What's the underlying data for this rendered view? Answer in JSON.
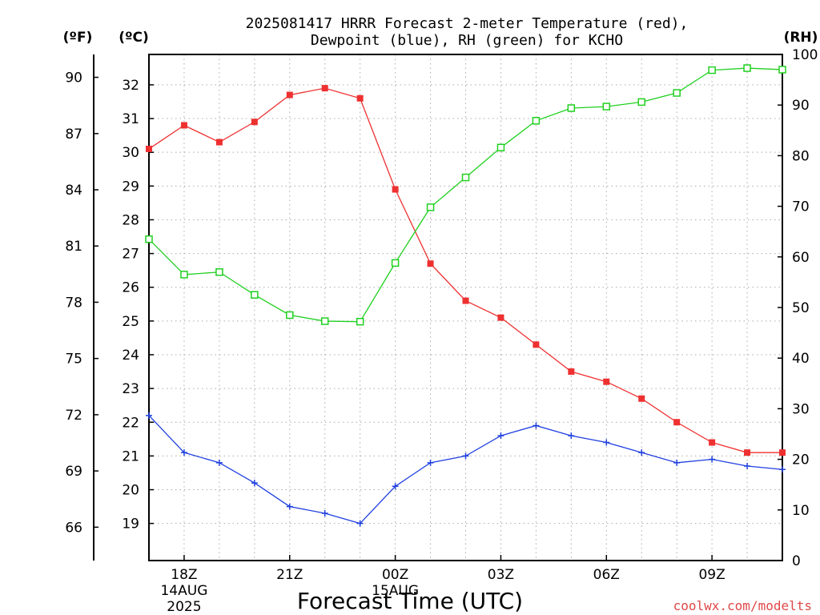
{
  "chart_data": {
    "type": "line",
    "title": "2025081417 HRRR Forecast 2-meter Temperature (red),",
    "subtitle": "Dewpoint (blue), RH (green) for KCHO",
    "xlabel": "Forecast Time (UTC)",
    "credit": "coolwx.com/modelts",
    "left_unit_f": "(ºF)",
    "left_unit_c": "(ºC)",
    "right_unit": "(RH)",
    "x": [
      "17Z",
      "18Z",
      "19Z",
      "20Z",
      "21Z",
      "22Z",
      "23Z",
      "00Z",
      "01Z",
      "02Z",
      "03Z",
      "04Z",
      "05Z",
      "06Z",
      "07Z",
      "08Z",
      "09Z",
      "10Z",
      "11Z"
    ],
    "x_tick_labels": [
      {
        "index": 1,
        "lines": [
          "18Z",
          "14AUG",
          "2025"
        ]
      },
      {
        "index": 4,
        "lines": [
          "21Z"
        ]
      },
      {
        "index": 7,
        "lines": [
          "00Z",
          "15AUG"
        ]
      },
      {
        "index": 10,
        "lines": [
          "03Z"
        ]
      },
      {
        "index": 13,
        "lines": [
          "06Z"
        ]
      },
      {
        "index": 16,
        "lines": [
          "09Z"
        ]
      }
    ],
    "axes": {
      "celsius": {
        "range": [
          17.9,
          32.9
        ],
        "ticks": [
          19,
          20,
          21,
          22,
          23,
          24,
          25,
          26,
          27,
          28,
          29,
          30,
          31,
          32
        ]
      },
      "fahrenheit": {
        "range": [
          64.22,
          91.22
        ],
        "ticks": [
          66,
          69,
          72,
          75,
          78,
          81,
          84,
          87,
          90
        ]
      },
      "rh": {
        "range": [
          0,
          100
        ],
        "ticks": [
          0,
          10,
          20,
          30,
          40,
          50,
          60,
          70,
          80,
          90,
          100
        ]
      }
    },
    "grid": true,
    "series": [
      {
        "axis": "celsius",
        "color": "#ee3030",
        "marker": "filled-square",
        "values": [
          30.1,
          30.8,
          30.3,
          30.9,
          31.7,
          31.9,
          31.6,
          28.9,
          26.7,
          25.6,
          25.1,
          24.3,
          23.5,
          23.2,
          22.7,
          22.0,
          21.4,
          21.1,
          21.1
        ]
      },
      {
        "axis": "celsius",
        "color": "#2040e0",
        "marker": "plus",
        "values": [
          22.2,
          21.1,
          20.8,
          20.2,
          19.5,
          19.3,
          19.0,
          20.1,
          20.8,
          21.0,
          21.6,
          21.9,
          21.6,
          21.4,
          21.1,
          20.8,
          20.9,
          20.7,
          20.6
        ]
      },
      {
        "axis": "rh",
        "color": "#20d020",
        "marker": "open-square",
        "values": [
          63.5,
          56.5,
          57.0,
          52.5,
          48.5,
          47.3,
          47.2,
          58.8,
          69.8,
          75.7,
          81.6,
          86.9,
          89.4,
          89.7,
          90.6,
          92.4,
          96.9,
          97.3,
          97.0
        ]
      }
    ]
  }
}
